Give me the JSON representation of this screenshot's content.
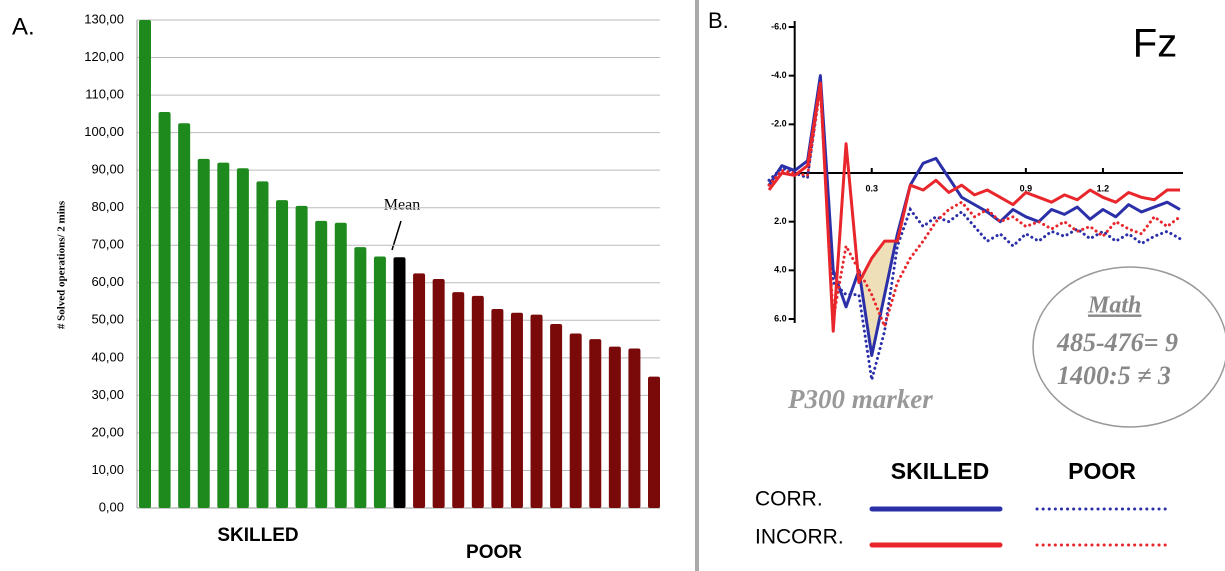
{
  "chart_data": [
    {
      "type": "bar",
      "panel": "A.",
      "y_label": "# Solved operations/ 2 mins",
      "ylim": [
        0,
        130
      ],
      "yticks": [
        {
          "value": 0,
          "label": "0,00"
        },
        {
          "value": 10,
          "label": "10,00"
        },
        {
          "value": 20,
          "label": "20,00"
        },
        {
          "value": 30,
          "label": "30,00"
        },
        {
          "value": 40,
          "label": "40,00"
        },
        {
          "value": 50,
          "label": "50,00"
        },
        {
          "value": 60,
          "label": "60,00"
        },
        {
          "value": 70,
          "label": "70,00"
        },
        {
          "value": 80,
          "label": "80,00"
        },
        {
          "value": 90,
          "label": "90,00"
        },
        {
          "value": 100,
          "label": "100,00"
        },
        {
          "value": 110,
          "label": "110,00"
        },
        {
          "value": 120,
          "label": "120,00"
        },
        {
          "value": 130,
          "label": "130,00"
        }
      ],
      "grid": true,
      "values": [
        130,
        105.5,
        102.5,
        93,
        92,
        90.5,
        87,
        82,
        80.5,
        76.5,
        76,
        69.5,
        67,
        66.8,
        62.5,
        61,
        57.5,
        56.5,
        53,
        52,
        51.5,
        49,
        46.5,
        45,
        43,
        42.5,
        35
      ],
      "colors": [
        "#1e8a1e",
        "#1e8a1e",
        "#1e8a1e",
        "#1e8a1e",
        "#1e8a1e",
        "#1e8a1e",
        "#1e8a1e",
        "#1e8a1e",
        "#1e8a1e",
        "#1e8a1e",
        "#1e8a1e",
        "#1e8a1e",
        "#1e8a1e",
        "#000000",
        "#7a0a0a",
        "#7a0a0a",
        "#7a0a0a",
        "#7a0a0a",
        "#7a0a0a",
        "#7a0a0a",
        "#7a0a0a",
        "#7a0a0a",
        "#7a0a0a",
        "#7a0a0a",
        "#7a0a0a",
        "#7a0a0a",
        "#7a0a0a"
      ],
      "mean_label": "Mean",
      "group_labels": [
        "SKILLED",
        "POOR"
      ]
    },
    {
      "type": "line",
      "panel": "B.",
      "title": "Fz",
      "x": [
        -0.1,
        -0.05,
        0,
        0.05,
        0.1,
        0.15,
        0.2,
        0.25,
        0.3,
        0.35,
        0.4,
        0.45,
        0.5,
        0.55,
        0.6,
        0.65,
        0.7,
        0.75,
        0.8,
        0.85,
        0.9,
        0.95,
        1.0,
        1.05,
        1.1,
        1.15,
        1.2,
        1.25,
        1.3,
        1.35,
        1.4,
        1.45,
        1.5
      ],
      "xlim": [
        -0.1,
        1.5
      ],
      "xticks": [
        0.3,
        0.9,
        1.2
      ],
      "ylim": [
        -6,
        6
      ],
      "y_inverted": true,
      "yticks": [
        {
          "value": -6,
          "label": "-6.0"
        },
        {
          "value": -4,
          "label": "-4.0"
        },
        {
          "value": -2,
          "label": "-2.0"
        },
        {
          "value": 2,
          "label": "2.0"
        },
        {
          "value": 4,
          "label": "4.0"
        },
        {
          "value": 6,
          "label": "6.0"
        }
      ],
      "series": [
        {
          "color": "#2b30a8",
          "style": "solid",
          "values": [
            0.5,
            -0.3,
            -0.1,
            -0.5,
            -4.0,
            4.0,
            5.5,
            4.0,
            7.5,
            5.0,
            2.5,
            0.5,
            -0.4,
            -0.6,
            0.2,
            1.0,
            1.3,
            1.6,
            2.0,
            1.5,
            1.8,
            2.0,
            1.5,
            1.7,
            1.4,
            1.9,
            1.5,
            1.8,
            1.3,
            1.6,
            1.4,
            1.2,
            1.5
          ]
        },
        {
          "color": "#2b30a8",
          "style": "dotted",
          "values": [
            0.3,
            -0.2,
            0.0,
            0.2,
            -3.8,
            4.5,
            5.0,
            5.0,
            8.5,
            6.5,
            3.0,
            1.5,
            2.2,
            1.8,
            2.0,
            1.6,
            2.2,
            2.8,
            2.5,
            3.0,
            2.5,
            2.8,
            2.4,
            2.6,
            2.3,
            2.7,
            2.4,
            2.8,
            2.5,
            2.9,
            2.6,
            2.4,
            2.7
          ]
        },
        {
          "color": "#e8262b",
          "style": "solid",
          "values": [
            0.7,
            0.0,
            0.1,
            -0.3,
            -3.7,
            6.5,
            -1.2,
            4.5,
            3.5,
            2.8,
            2.8,
            0.5,
            0.7,
            0.3,
            0.8,
            0.5,
            0.9,
            0.7,
            1.0,
            1.3,
            0.8,
            1.0,
            1.2,
            0.9,
            1.1,
            0.7,
            1.0,
            1.2,
            0.8,
            1.0,
            1.1,
            0.7,
            0.7
          ]
        },
        {
          "color": "#e8262b",
          "style": "dotted",
          "values": [
            0.5,
            -0.1,
            0.0,
            0.1,
            -3.5,
            6.0,
            3.0,
            4.0,
            5.0,
            6.3,
            4.5,
            3.5,
            2.8,
            2.0,
            1.5,
            1.2,
            1.8,
            1.5,
            2.0,
            1.8,
            2.2,
            2.0,
            2.3,
            2.0,
            2.4,
            2.2,
            2.6,
            2.0,
            2.3,
            2.5,
            1.8,
            2.2,
            1.8
          ]
        }
      ],
      "legend": {
        "columns": [
          "SKILLED",
          "POOR"
        ],
        "rows": [
          "CORR.",
          "INCORR."
        ]
      },
      "marker_label": "P300 marker",
      "math_box": {
        "title": "Math",
        "lines": [
          "485-476= 9",
          "1400:5  ≠ 3"
        ]
      }
    }
  ]
}
